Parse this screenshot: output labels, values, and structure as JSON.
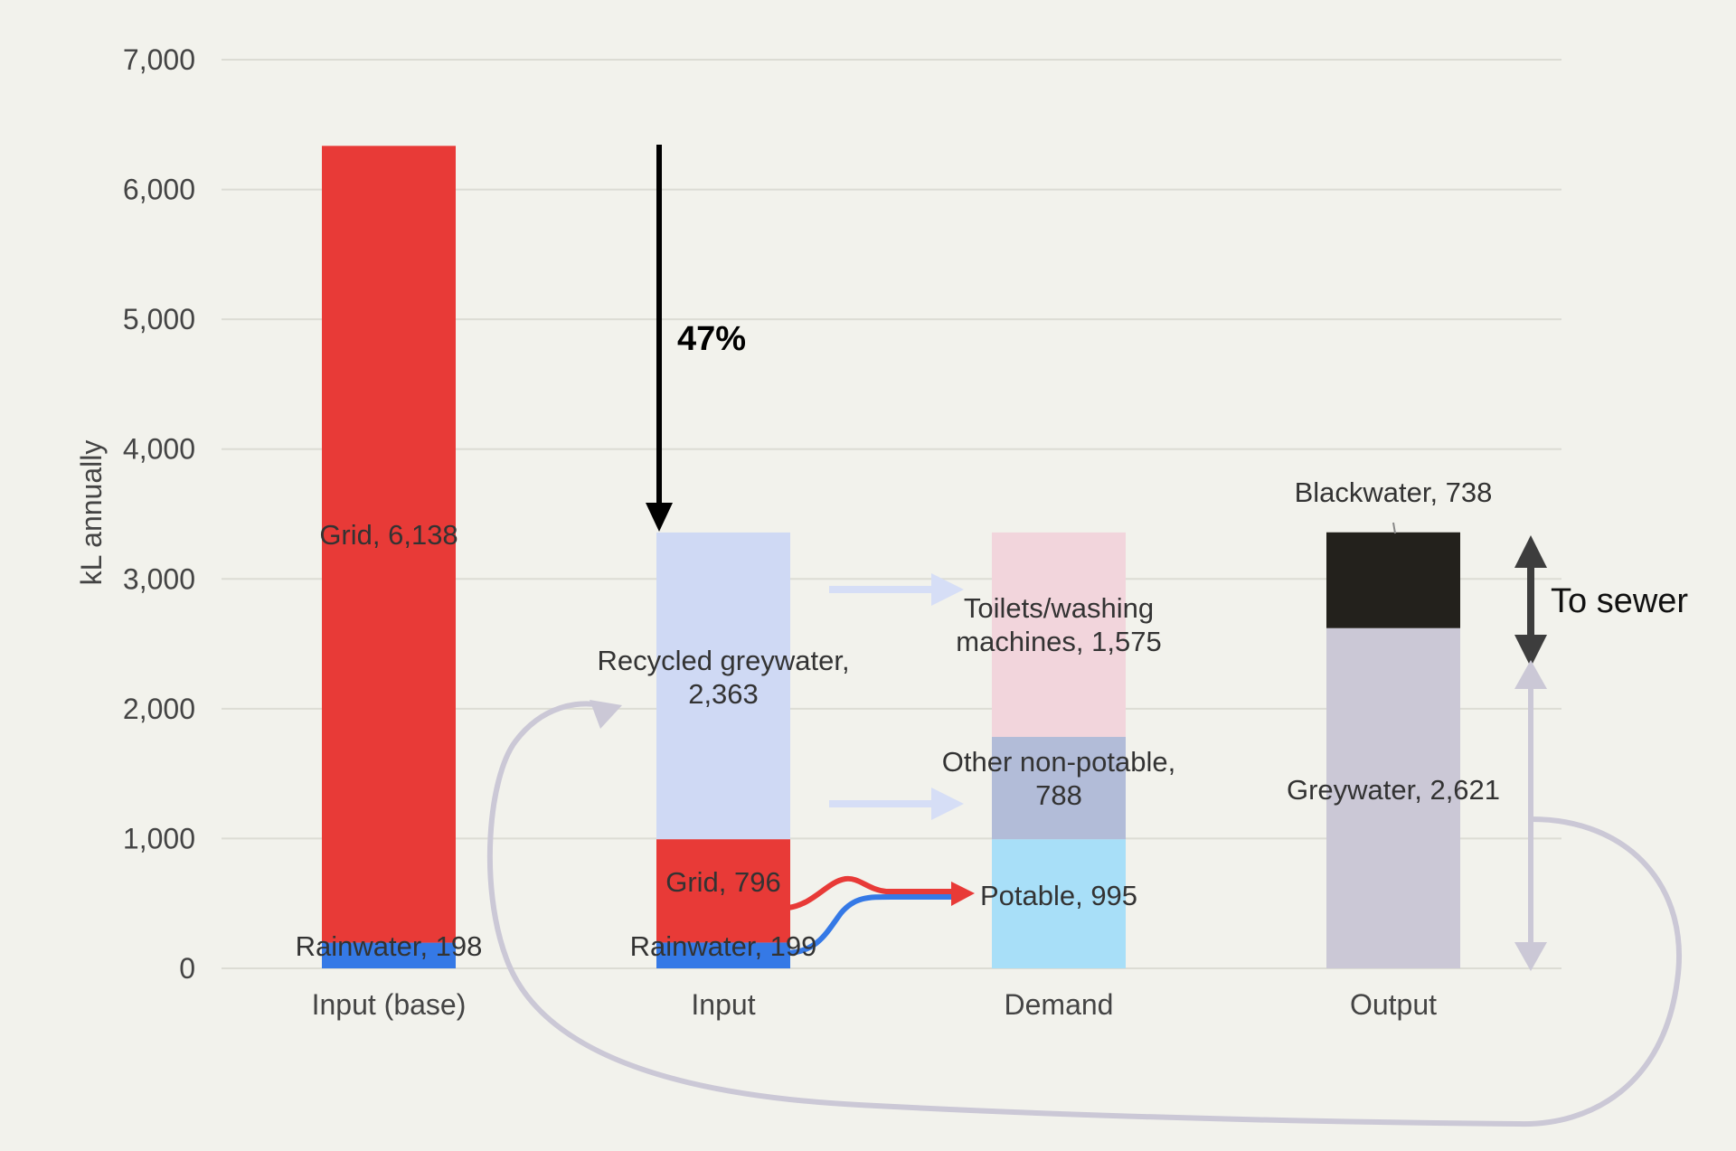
{
  "chart_data": {
    "type": "bar",
    "stacked": true,
    "ylabel": "kL annually",
    "ylim": [
      0,
      7000
    ],
    "yticks": [
      "0",
      "1,000",
      "2,000",
      "3,000",
      "4,000",
      "5,000",
      "6,000",
      "7,000"
    ],
    "ytick_values": [
      0,
      1000,
      2000,
      3000,
      4000,
      5000,
      6000,
      7000
    ],
    "grid": true,
    "categories": [
      "Input (base)",
      "Input",
      "Demand",
      "Output"
    ],
    "bars": [
      {
        "category": "Input (base)",
        "segments": [
          {
            "name": "Rainwater",
            "value": 198,
            "label": "Rainwater, 198",
            "color": "#3579e6"
          },
          {
            "name": "Grid",
            "value": 6138,
            "label": "Grid, 6,138",
            "color": "#e83a37"
          }
        ]
      },
      {
        "category": "Input",
        "segments": [
          {
            "name": "Rainwater",
            "value": 199,
            "label": "Rainwater, 199",
            "color": "#3579e6"
          },
          {
            "name": "Grid",
            "value": 796,
            "label": "Grid, 796",
            "color": "#e83a37"
          },
          {
            "name": "Recycled greywater",
            "value": 2363,
            "label": [
              "Recycled greywater,",
              "2,363"
            ],
            "color": "#cfd9f4"
          }
        ]
      },
      {
        "category": "Demand",
        "segments": [
          {
            "name": "Potable",
            "value": 995,
            "label": "Potable, 995",
            "color": "#a8dff8"
          },
          {
            "name": "Other non-potable",
            "value": 788,
            "label": [
              "Other non-potable,",
              "788"
            ],
            "color": "#b2bcd8"
          },
          {
            "name": "Toilets/washing machines",
            "value": 1575,
            "label": [
              "Toilets/washing",
              "machines, 1,575"
            ],
            "color": "#f2d5dc"
          }
        ]
      },
      {
        "category": "Output",
        "segments": [
          {
            "name": "Greywater",
            "value": 2621,
            "label": "Greywater, 2,621",
            "color": "#cbc8d6"
          },
          {
            "name": "Blackwater",
            "value": 738,
            "label": "Blackwater, 738",
            "color": "#23211c"
          }
        ]
      }
    ],
    "annotations": {
      "reduction_label": "47%",
      "sewer_label": "To sewer"
    },
    "colors": {
      "grid_line": "#dcdcd4",
      "flow_light": "#cbc8d6",
      "flow_arrow": "#d6def6",
      "arrow_dark": "#3d3d3d",
      "arrow_black": "#000000",
      "red": "#e83a37",
      "blue": "#3579e6"
    }
  }
}
